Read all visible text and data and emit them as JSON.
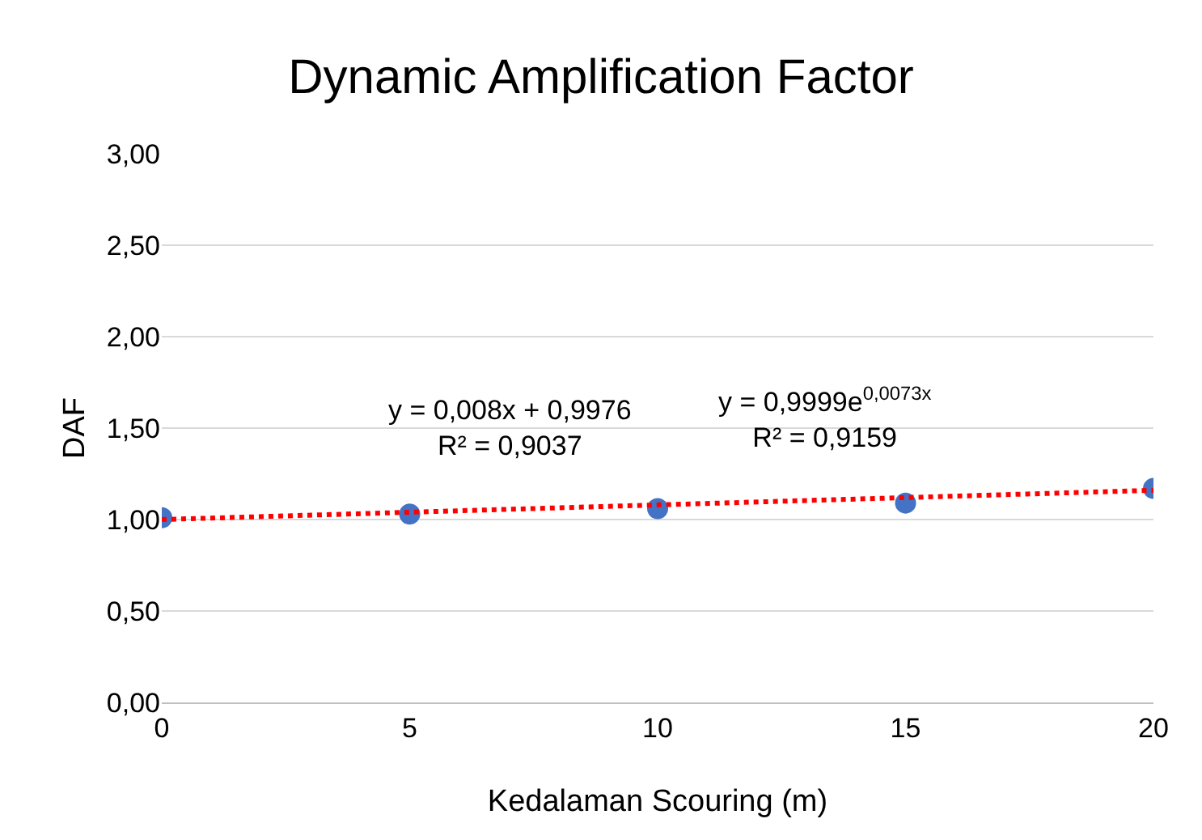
{
  "chart_data": {
    "type": "scatter",
    "title": "Dynamic Amplification Factor",
    "xlabel": "Kedalaman Scouring (m)",
    "ylabel": "DAF",
    "x": [
      0,
      5,
      10,
      15,
      20
    ],
    "series": [
      {
        "color": "#4472c4",
        "values": [
          1.01,
          1.03,
          1.06,
          1.09,
          1.17
        ],
        "marker": "circle"
      },
      {
        "type": "line",
        "color": "#ff0000",
        "x": [
          0,
          20
        ],
        "values": [
          1.0,
          1.16
        ],
        "line_style": "dotted",
        "marker": "none"
      }
    ],
    "annotations": [
      "y = 0,008x + 0,9976\nR² = 0,9037",
      "y = 0,9999e$^{0,0073x}$\nR² = 0,9159"
    ],
    "xlim": [
      0,
      20
    ],
    "xticks": [
      0,
      5,
      10,
      15,
      20
    ],
    "ylim": [
      0,
      3
    ],
    "yticks": [
      {
        "value": 0,
        "label": "0,00"
      },
      {
        "value": 0.5,
        "label": "0,50"
      },
      {
        "value": 1,
        "label": "1,00"
      },
      {
        "value": 1.5,
        "label": "1,50"
      },
      {
        "value": 2,
        "label": "2,00"
      },
      {
        "value": 2.5,
        "label": "2,50"
      },
      {
        "value": 3,
        "label": "3,00"
      }
    ],
    "grid": "y"
  }
}
